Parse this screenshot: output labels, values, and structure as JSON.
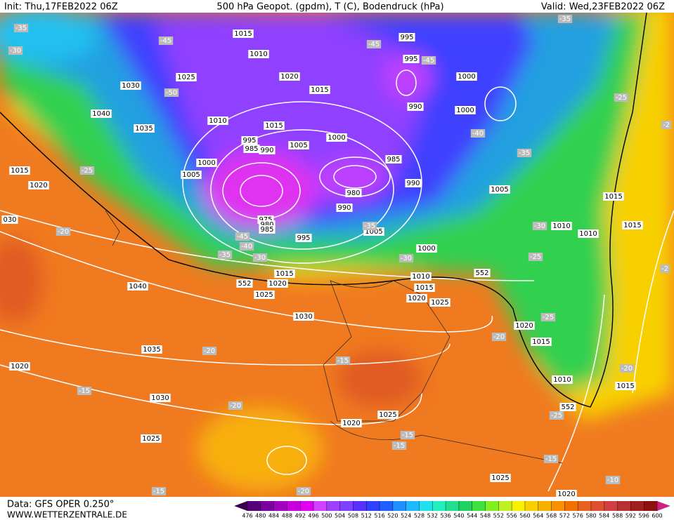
{
  "header": {
    "init": "Init: Thu,17FEB2022 06Z",
    "title": "500 hPa Geopot. (gpdm), T (C), Bodendruck (hPa)",
    "valid": "Valid: Wed,23FEB2022 06Z"
  },
  "footer": {
    "data": "Data: GFS OPER 0.250°",
    "url": "WWW.WETTERZENTRALE.DE"
  },
  "pressure_labels": [
    "1015",
    "1010",
    "1025",
    "1030",
    "1040",
    "1035",
    "1010",
    "1020",
    "1015",
    "1015",
    "995",
    "985",
    "990",
    "1005",
    "1000",
    "1000",
    "1005",
    "985",
    "980",
    "990",
    "990",
    "975",
    "980",
    "985",
    "995",
    "1005",
    "1000",
    "1005",
    "1010",
    "1010",
    "1015",
    "1015",
    "1015",
    "1020",
    "1025",
    "1040",
    "1030",
    "1035",
    "1020",
    "1030",
    "1025",
    "1020",
    "1025",
    "1025",
    "1020",
    "1010",
    "1015",
    "1020",
    "1015",
    "1010",
    "1015",
    "1020",
    "1025",
    "1000",
    "1000",
    "995",
    "995",
    "990",
    "1015",
    "1020",
    "030"
  ],
  "temperature_labels": [
    "-35",
    "-30",
    "-45",
    "-50",
    "-45",
    "-45",
    "-40",
    "-35",
    "-35",
    "-25",
    "-25",
    "-20",
    "-45",
    "-40",
    "-35",
    "-30",
    "-35",
    "-30",
    "-30",
    "-25",
    "-25",
    "-20",
    "-20",
    "-15",
    "-20",
    "-15",
    "-15",
    "-15",
    "-15",
    "-10",
    "-20",
    "-15",
    "-20",
    "-25",
    "-2",
    "-2"
  ],
  "height_labels": [
    "552",
    "552",
    "552"
  ],
  "legend": {
    "ticks": [
      476,
      480,
      484,
      488,
      492,
      496,
      500,
      504,
      508,
      512,
      516,
      520,
      524,
      528,
      532,
      536,
      540,
      544,
      548,
      552,
      556,
      560,
      564,
      568,
      572,
      576,
      580,
      584,
      588,
      592,
      596,
      600
    ],
    "colors": [
      "#3a0050",
      "#56007a",
      "#7a009e",
      "#a000c0",
      "#c800e0",
      "#e000f0",
      "#d040ff",
      "#a040ff",
      "#8040ff",
      "#5a30ff",
      "#3040ff",
      "#2060ff",
      "#2090ff",
      "#20b8ff",
      "#20e0f0",
      "#20f0c0",
      "#20e090",
      "#20d060",
      "#40e040",
      "#80f020",
      "#c0f020",
      "#f8f000",
      "#f8d000",
      "#f8b000",
      "#f89000",
      "#f07000",
      "#e86020",
      "#e05030",
      "#d04040",
      "#b83030",
      "#a02020",
      "#901010",
      "#d02080"
    ]
  }
}
